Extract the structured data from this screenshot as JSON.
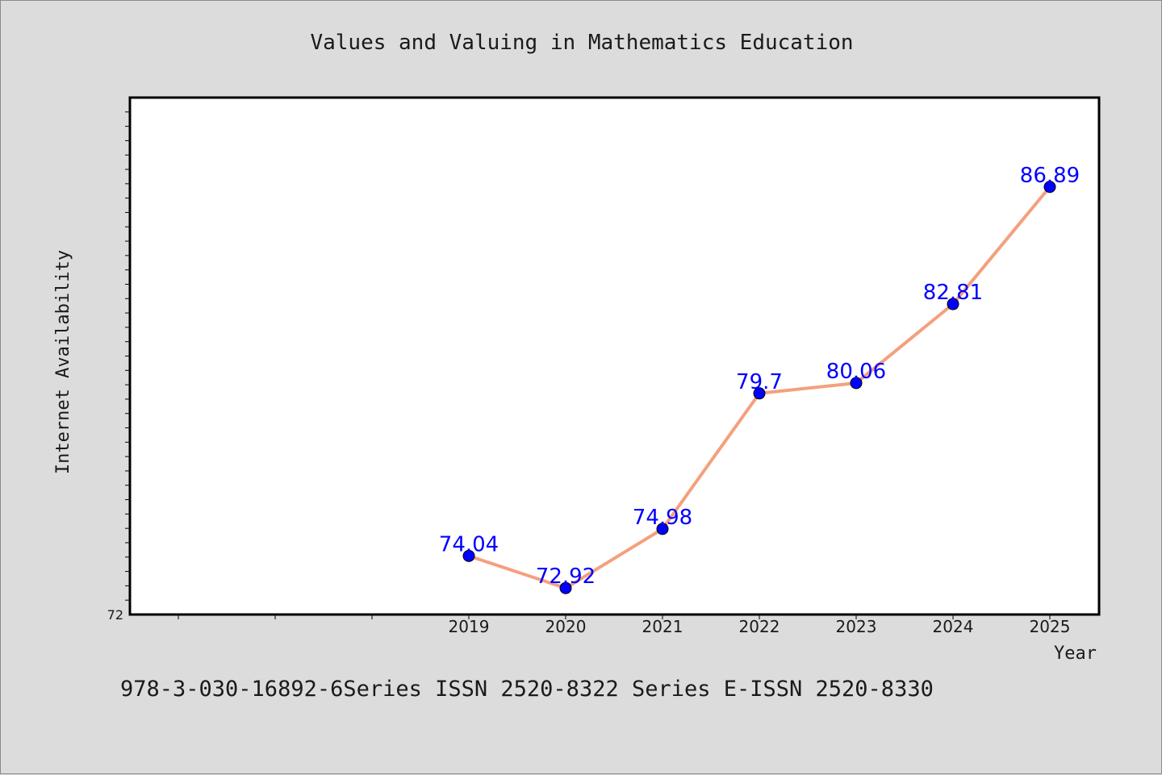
{
  "footer": "978-3-030-16892-6Series ISSN 2520-8322 Series E-ISSN 2520-8330",
  "colors": {
    "background": "#dcdcdc",
    "plot_background": "#ffffff",
    "line": "#f4a07e",
    "marker": "#0000ff",
    "data_label": "#0000ff"
  },
  "chart_data": {
    "type": "line",
    "title": "Values and Valuing in Mathematics Education",
    "xlabel": "Year",
    "ylabel": "Internet Availability",
    "categories": [
      "2019",
      "2020",
      "2021",
      "2022",
      "2023",
      "2024",
      "2025"
    ],
    "series": [
      {
        "values": [
          74.04,
          72.92,
          74.98,
          79.7,
          80.06,
          82.81,
          86.89
        ]
      }
    ],
    "data_labels": [
      "74.04",
      "72.92",
      "74.98",
      "79.7",
      "80.06",
      "82.81",
      "86.89"
    ],
    "y_tick_labels": [
      "72"
    ],
    "ylim": [
      72,
      90
    ],
    "grid": false,
    "legend": "none"
  }
}
